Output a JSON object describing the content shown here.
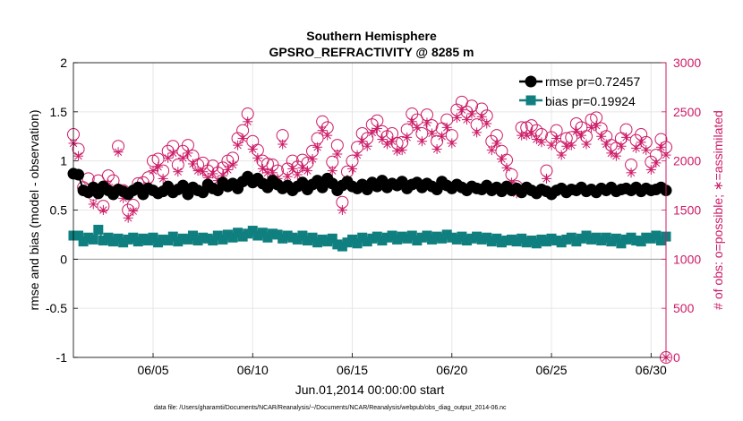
{
  "chart_data": {
    "type": "line",
    "title": "Southern Hemisphere",
    "subtitle": "GPSRO_REFRACTIVITY @ 8285 m",
    "xlabel": "Jun.01,2014 00:00:00 start",
    "ylabel": "rmse and bias (model - observation)",
    "y2label": "# of obs: o=possible; ∗=assimilated",
    "footnote": "data file: /Users/gharamti/Documents/NCAR/Reanalysis/~/Documents/NCAR/Reanalysis/webpub/obs_diag_output_2014-06.nc",
    "x_unit": "day of June 2014 (fractional)",
    "xlim": [
      1,
      30.75
    ],
    "ylim": [
      -1,
      2
    ],
    "y2lim": [
      0,
      3000
    ],
    "xticks": [
      5,
      10,
      15,
      20,
      25,
      30
    ],
    "xtick_labels": [
      "06/05",
      "06/10",
      "06/15",
      "06/20",
      "06/25",
      "06/30"
    ],
    "yticks": [
      -1,
      -0.5,
      0,
      0.5,
      1,
      1.5,
      2
    ],
    "ytick_labels": [
      "-1",
      "-0.5",
      "0",
      "0.5",
      "1",
      "1.5",
      "2"
    ],
    "y2ticks": [
      0,
      500,
      1000,
      1500,
      2000,
      2500,
      3000
    ],
    "y2tick_labels": [
      "0",
      "500",
      "1000",
      "1500",
      "2000",
      "2500",
      "3000"
    ],
    "grid": true,
    "legend_position": "top-right",
    "colors": {
      "rmse": "#000000",
      "bias": "#0f7f7f",
      "counts": "#cc1a66",
      "zero_line": "#999999"
    },
    "series": [
      {
        "name": "rmse pr=0.72457",
        "axis": "left",
        "marker": "circle",
        "x": [
          1.0,
          1.25,
          1.5,
          1.75,
          2.0,
          2.25,
          2.5,
          2.75,
          3.0,
          3.25,
          3.5,
          3.75,
          4.0,
          4.25,
          4.5,
          4.75,
          5.0,
          5.25,
          5.5,
          5.75,
          6.0,
          6.25,
          6.5,
          6.75,
          7.0,
          7.25,
          7.5,
          7.75,
          8.0,
          8.25,
          8.5,
          8.75,
          9.0,
          9.25,
          9.5,
          9.75,
          10.0,
          10.25,
          10.5,
          10.75,
          11.0,
          11.25,
          11.5,
          11.75,
          12.0,
          12.25,
          12.5,
          12.75,
          13.0,
          13.25,
          13.5,
          13.75,
          14.0,
          14.25,
          14.5,
          14.75,
          15.0,
          15.25,
          15.5,
          15.75,
          16.0,
          16.25,
          16.5,
          16.75,
          17.0,
          17.25,
          17.5,
          17.75,
          18.0,
          18.25,
          18.5,
          18.75,
          19.0,
          19.25,
          19.5,
          19.75,
          20.0,
          20.25,
          20.5,
          20.75,
          21.0,
          21.25,
          21.5,
          21.75,
          22.0,
          22.25,
          22.5,
          22.75,
          23.0,
          23.25,
          23.5,
          23.75,
          24.0,
          24.25,
          24.5,
          24.75,
          25.0,
          25.25,
          25.5,
          25.75,
          26.0,
          26.25,
          26.5,
          26.75,
          27.0,
          27.25,
          27.5,
          27.75,
          28.0,
          28.25,
          28.5,
          28.75,
          29.0,
          29.25,
          29.5,
          29.75,
          30.0,
          30.25,
          30.5,
          30.75
        ],
        "values": [
          0.87,
          0.86,
          0.7,
          0.68,
          0.73,
          0.67,
          0.74,
          0.7,
          0.66,
          0.71,
          0.69,
          0.66,
          0.7,
          0.73,
          0.66,
          0.72,
          0.7,
          0.67,
          0.69,
          0.74,
          0.68,
          0.71,
          0.75,
          0.66,
          0.73,
          0.7,
          0.68,
          0.76,
          0.72,
          0.7,
          0.78,
          0.74,
          0.77,
          0.72,
          0.79,
          0.84,
          0.78,
          0.82,
          0.77,
          0.73,
          0.8,
          0.76,
          0.72,
          0.75,
          0.7,
          0.74,
          0.78,
          0.71,
          0.76,
          0.8,
          0.73,
          0.82,
          0.77,
          0.7,
          0.75,
          0.79,
          0.74,
          0.72,
          0.76,
          0.71,
          0.78,
          0.74,
          0.8,
          0.73,
          0.77,
          0.75,
          0.79,
          0.72,
          0.76,
          0.78,
          0.73,
          0.77,
          0.74,
          0.71,
          0.79,
          0.75,
          0.72,
          0.76,
          0.73,
          0.7,
          0.74,
          0.72,
          0.71,
          0.75,
          0.7,
          0.73,
          0.69,
          0.74,
          0.7,
          0.72,
          0.68,
          0.73,
          0.7,
          0.67,
          0.71,
          0.69,
          0.66,
          0.7,
          0.72,
          0.68,
          0.71,
          0.7,
          0.73,
          0.69,
          0.71,
          0.68,
          0.72,
          0.7,
          0.73,
          0.69,
          0.71,
          0.72,
          0.7,
          0.73,
          0.69,
          0.72,
          0.7,
          0.71,
          0.73,
          0.7
        ]
      },
      {
        "name": "bias pr=0.19924",
        "axis": "left",
        "marker": "square",
        "x": [
          1.0,
          1.25,
          1.5,
          1.75,
          2.0,
          2.25,
          2.5,
          2.75,
          3.0,
          3.25,
          3.5,
          3.75,
          4.0,
          4.25,
          4.5,
          4.75,
          5.0,
          5.25,
          5.5,
          5.75,
          6.0,
          6.25,
          6.5,
          6.75,
          7.0,
          7.25,
          7.5,
          7.75,
          8.0,
          8.25,
          8.5,
          8.75,
          9.0,
          9.25,
          9.5,
          9.75,
          10.0,
          10.25,
          10.5,
          10.75,
          11.0,
          11.25,
          11.5,
          11.75,
          12.0,
          12.25,
          12.5,
          12.75,
          13.0,
          13.25,
          13.5,
          13.75,
          14.0,
          14.25,
          14.5,
          14.75,
          15.0,
          15.25,
          15.5,
          15.75,
          16.0,
          16.25,
          16.5,
          16.75,
          17.0,
          17.25,
          17.5,
          17.75,
          18.0,
          18.25,
          18.5,
          18.75,
          19.0,
          19.25,
          19.5,
          19.75,
          20.0,
          20.25,
          20.5,
          20.75,
          21.0,
          21.25,
          21.5,
          21.75,
          22.0,
          22.25,
          22.5,
          22.75,
          23.0,
          23.25,
          23.5,
          23.75,
          24.0,
          24.25,
          24.5,
          24.75,
          25.0,
          25.25,
          25.5,
          25.75,
          26.0,
          26.25,
          26.5,
          26.75,
          27.0,
          27.25,
          27.5,
          27.75,
          28.0,
          28.25,
          28.5,
          28.75,
          29.0,
          29.25,
          29.5,
          29.75,
          30.0,
          30.25,
          30.5,
          30.75
        ],
        "values": [
          0.24,
          0.24,
          0.18,
          0.22,
          0.2,
          0.3,
          0.19,
          0.22,
          0.18,
          0.21,
          0.17,
          0.2,
          0.22,
          0.18,
          0.21,
          0.19,
          0.22,
          0.17,
          0.2,
          0.19,
          0.23,
          0.18,
          0.21,
          0.2,
          0.24,
          0.19,
          0.22,
          0.21,
          0.19,
          0.24,
          0.2,
          0.25,
          0.22,
          0.27,
          0.23,
          0.26,
          0.29,
          0.24,
          0.27,
          0.22,
          0.26,
          0.25,
          0.21,
          0.24,
          0.22,
          0.2,
          0.24,
          0.19,
          0.22,
          0.17,
          0.2,
          0.18,
          0.21,
          0.15,
          0.13,
          0.17,
          0.2,
          0.16,
          0.22,
          0.18,
          0.21,
          0.23,
          0.19,
          0.22,
          0.24,
          0.2,
          0.23,
          0.21,
          0.24,
          0.19,
          0.22,
          0.24,
          0.2,
          0.23,
          0.21,
          0.25,
          0.22,
          0.2,
          0.23,
          0.19,
          0.21,
          0.23,
          0.2,
          0.22,
          0.18,
          0.21,
          0.17,
          0.19,
          0.2,
          0.18,
          0.21,
          0.17,
          0.19,
          0.16,
          0.2,
          0.18,
          0.21,
          0.19,
          0.17,
          0.2,
          0.22,
          0.18,
          0.21,
          0.24,
          0.2,
          0.22,
          0.19,
          0.22,
          0.18,
          0.21,
          0.16,
          0.2,
          0.22,
          0.19,
          0.18,
          0.22,
          0.21,
          0.24,
          0.19,
          0.23
        ]
      },
      {
        "name": "possible",
        "axis": "right",
        "marker": "open-circle",
        "x": [
          1.0,
          1.25,
          1.5,
          1.75,
          2.0,
          2.25,
          2.5,
          2.75,
          3.0,
          3.25,
          3.5,
          3.75,
          4.0,
          4.25,
          4.5,
          4.75,
          5.0,
          5.25,
          5.5,
          5.75,
          6.0,
          6.25,
          6.5,
          6.75,
          7.0,
          7.25,
          7.5,
          7.75,
          8.0,
          8.25,
          8.5,
          8.75,
          9.0,
          9.25,
          9.5,
          9.75,
          10.0,
          10.25,
          10.5,
          10.75,
          11.0,
          11.25,
          11.5,
          11.75,
          12.0,
          12.25,
          12.5,
          12.75,
          13.0,
          13.25,
          13.5,
          13.75,
          14.0,
          14.25,
          14.5,
          14.75,
          15.0,
          15.25,
          15.5,
          15.75,
          16.0,
          16.25,
          16.5,
          16.75,
          17.0,
          17.25,
          17.5,
          17.75,
          18.0,
          18.25,
          18.5,
          18.75,
          19.0,
          19.25,
          19.5,
          19.75,
          20.0,
          20.25,
          20.5,
          20.75,
          21.0,
          21.25,
          21.5,
          21.75,
          22.0,
          22.25,
          22.5,
          22.75,
          23.0,
          23.25,
          23.5,
          23.75,
          24.0,
          24.25,
          24.5,
          24.75,
          25.0,
          25.25,
          25.5,
          25.75,
          26.0,
          26.25,
          26.5,
          26.75,
          27.0,
          27.25,
          27.5,
          27.75,
          28.0,
          28.25,
          28.5,
          28.75,
          29.0,
          29.25,
          29.5,
          29.75,
          30.0,
          30.25,
          30.5,
          30.75
        ],
        "values": [
          2270,
          2120,
          1730,
          1820,
          1660,
          1800,
          1540,
          1850,
          1800,
          2150,
          1700,
          1500,
          1550,
          1770,
          1780,
          1830,
          2000,
          2020,
          1900,
          2100,
          2150,
          1960,
          2100,
          2160,
          2050,
          1960,
          1980,
          1900,
          1950,
          1880,
          1930,
          2000,
          2030,
          2230,
          2310,
          2480,
          2200,
          2110,
          2000,
          1970,
          1960,
          1900,
          2260,
          1920,
          2000,
          1940,
          2010,
          1980,
          2100,
          2230,
          2400,
          2340,
          1990,
          2160,
          1580,
          1890,
          2000,
          2140,
          2280,
          2230,
          2370,
          2410,
          2300,
          2250,
          2280,
          2180,
          2190,
          2320,
          2480,
          2420,
          2280,
          2470,
          2360,
          2200,
          2330,
          2420,
          2260,
          2520,
          2600,
          2500,
          2560,
          2370,
          2530,
          2460,
          2200,
          2260,
          2100,
          2010,
          1860,
          1740,
          2340,
          2340,
          2360,
          2310,
          2270,
          1900,
          2240,
          2310,
          2140,
          2230,
          2240,
          2380,
          2340,
          2250,
          2420,
          2440,
          2330,
          2250,
          2160,
          2130,
          2230,
          2320,
          1960,
          2210,
          2270,
          2190,
          1990,
          2060,
          2220,
          2140
        ]
      },
      {
        "name": "assimilated",
        "axis": "right",
        "marker": "asterisk",
        "x": [
          1.0,
          1.25,
          1.5,
          1.75,
          2.0,
          2.25,
          2.5,
          2.75,
          3.0,
          3.25,
          3.5,
          3.75,
          4.0,
          4.25,
          4.5,
          4.75,
          5.0,
          5.25,
          5.5,
          5.75,
          6.0,
          6.25,
          6.5,
          6.75,
          7.0,
          7.25,
          7.5,
          7.75,
          8.0,
          8.25,
          8.5,
          8.75,
          9.0,
          9.25,
          9.5,
          9.75,
          10.0,
          10.25,
          10.5,
          10.75,
          11.0,
          11.25,
          11.5,
          11.75,
          12.0,
          12.25,
          12.5,
          12.75,
          13.0,
          13.25,
          13.5,
          13.75,
          14.0,
          14.25,
          14.5,
          14.75,
          15.0,
          15.25,
          15.5,
          15.75,
          16.0,
          16.25,
          16.5,
          16.75,
          17.0,
          17.25,
          17.5,
          17.75,
          18.0,
          18.25,
          18.5,
          18.75,
          19.0,
          19.25,
          19.5,
          19.75,
          20.0,
          20.25,
          20.5,
          20.75,
          21.0,
          21.25,
          21.5,
          21.75,
          22.0,
          22.25,
          22.5,
          22.75,
          23.0,
          23.25,
          23.5,
          23.75,
          24.0,
          24.25,
          24.5,
          24.75,
          25.0,
          25.25,
          25.5,
          25.75,
          26.0,
          26.25,
          26.5,
          26.75,
          27.0,
          27.25,
          27.5,
          27.75,
          28.0,
          28.25,
          28.5,
          28.75,
          29.0,
          29.25,
          29.5,
          29.75,
          30.0,
          30.25,
          30.5,
          30.75
        ],
        "values": [
          2180,
          2050,
          1700,
          1700,
          1560,
          1720,
          1500,
          1760,
          1680,
          2090,
          1620,
          1420,
          1490,
          1690,
          1700,
          1740,
          1900,
          1940,
          1820,
          2030,
          2080,
          1890,
          2030,
          2080,
          1970,
          1900,
          1890,
          1830,
          1870,
          1800,
          1850,
          1910,
          1960,
          2160,
          2230,
          2400,
          2120,
          2030,
          1920,
          1880,
          1880,
          1820,
          2170,
          1840,
          1920,
          1860,
          1930,
          1900,
          2020,
          2140,
          2310,
          2260,
          1900,
          2070,
          1500,
          1810,
          1920,
          2060,
          2200,
          2150,
          2290,
          2330,
          2220,
          2170,
          2200,
          2100,
          2110,
          2240,
          2400,
          2340,
          2200,
          2390,
          2280,
          2120,
          2250,
          2340,
          2180,
          2440,
          2520,
          2420,
          2480,
          2290,
          2450,
          2380,
          2110,
          2180,
          2020,
          1930,
          1780,
          1670,
          2260,
          2260,
          2280,
          2220,
          2190,
          1820,
          2160,
          2230,
          2060,
          2150,
          2160,
          2300,
          2260,
          2170,
          2340,
          2360,
          2250,
          2170,
          2080,
          2050,
          2150,
          2240,
          1880,
          2130,
          2190,
          2110,
          1910,
          1980,
          2140,
          2060
        ]
      }
    ],
    "extra_points": [
      {
        "series": "possible",
        "x": 30.75,
        "value": 0
      },
      {
        "series": "assimilated",
        "x": 30.75,
        "value": 0
      }
    ]
  }
}
